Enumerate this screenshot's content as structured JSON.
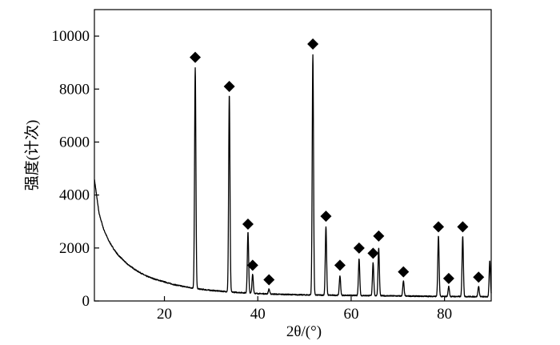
{
  "chart_data": {
    "type": "line",
    "title": "",
    "xlabel": "2θ/(°)",
    "ylabel": "强度(计次)",
    "xlim": [
      5,
      90
    ],
    "ylim": [
      0,
      11000
    ],
    "x_ticks": [
      20,
      40,
      60,
      80
    ],
    "x_tick_labels": [
      "20",
      "40",
      "60",
      "80"
    ],
    "y_ticks": [
      0,
      2000,
      4000,
      6000,
      8000,
      10000
    ],
    "y_tick_labels": [
      "0",
      "2000",
      "4000",
      "6000",
      "8000",
      "10000"
    ],
    "grid": false,
    "legend": "none",
    "background": {
      "x": [
        5,
        6,
        7,
        8,
        9,
        10,
        12,
        14,
        16,
        18,
        20,
        22,
        24,
        26,
        28,
        30,
        35,
        40,
        45,
        50,
        55,
        60,
        65,
        70,
        75,
        80,
        85,
        90
      ],
      "y": [
        4600,
        3300,
        2700,
        2300,
        2000,
        1750,
        1400,
        1150,
        950,
        820,
        720,
        620,
        550,
        490,
        440,
        400,
        330,
        280,
        250,
        230,
        220,
        210,
        200,
        190,
        180,
        170,
        165,
        160
      ]
    },
    "peaks": [
      {
        "x": 26.6,
        "y": 8800,
        "marker_y": 9200
      },
      {
        "x": 33.9,
        "y": 7800,
        "marker_y": 8100
      },
      {
        "x": 37.9,
        "y": 2600,
        "marker_y": 2900
      },
      {
        "x": 38.9,
        "y": 1000,
        "marker_y": 1350
      },
      {
        "x": 42.4,
        "y": 450,
        "marker_y": 800
      },
      {
        "x": 51.8,
        "y": 9300,
        "marker_y": 9700
      },
      {
        "x": 54.6,
        "y": 2800,
        "marker_y": 3200
      },
      {
        "x": 57.6,
        "y": 950,
        "marker_y": 1350
      },
      {
        "x": 61.7,
        "y": 1600,
        "marker_y": 2000
      },
      {
        "x": 64.7,
        "y": 1450,
        "marker_y": 1800
      },
      {
        "x": 65.9,
        "y": 2000,
        "marker_y": 2450
      },
      {
        "x": 71.2,
        "y": 750,
        "marker_y": 1100
      },
      {
        "x": 78.7,
        "y": 2450,
        "marker_y": 2800
      },
      {
        "x": 80.9,
        "y": 550,
        "marker_y": 850
      },
      {
        "x": 83.9,
        "y": 2450,
        "marker_y": 2800
      },
      {
        "x": 87.3,
        "y": 550,
        "marker_y": 900
      },
      {
        "x": 89.7,
        "y": 1500
      }
    ],
    "marker": "diamond",
    "colors": {
      "line": "#000000",
      "marker": "#000000",
      "axis": "#000000"
    }
  }
}
